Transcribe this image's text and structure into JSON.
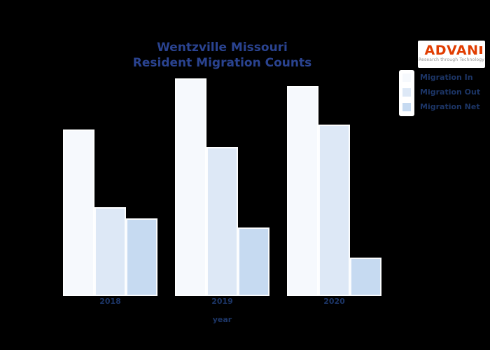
{
  "page": {
    "background": "#000000"
  },
  "title": {
    "line1": "Wentzville Missouri",
    "line2": "Resident Migration Counts",
    "color": "#2a4390"
  },
  "logo": {
    "name": "ADVAN",
    "tagline": "Research through Technology",
    "text_color": "#e13d01",
    "tagline_color": "#8f8f8f",
    "background": "#ffffff"
  },
  "legend": {
    "position": "upper right",
    "items": [
      {
        "label": "Migration In",
        "color": "#f6f9fd"
      },
      {
        "label": "Migration Out",
        "color": "#dde8f6"
      },
      {
        "label": "Migration Net",
        "color": "#c6daf1"
      }
    ]
  },
  "chart_data": {
    "type": "bar",
    "title": "Wentzville Missouri Resident Migration Counts",
    "categories": [
      "2018",
      "2019",
      "2020"
    ],
    "series": [
      {
        "name": "Migration In",
        "color": "#f6f9fd",
        "values": [
          2380,
          3110,
          3000
        ]
      },
      {
        "name": "Migration Out",
        "color": "#dde8f6",
        "values": [
          1270,
          2130,
          2450
        ]
      },
      {
        "name": "Migration Net",
        "color": "#c6daf1",
        "values": [
          1110,
          980,
          550
        ]
      }
    ],
    "xlabel": "year",
    "ylabel": "",
    "ylim": [
      0,
      3300
    ],
    "y_axis_visible": false,
    "gridlines": false,
    "legend_position": "upper right",
    "text_color": "#1c3566"
  }
}
